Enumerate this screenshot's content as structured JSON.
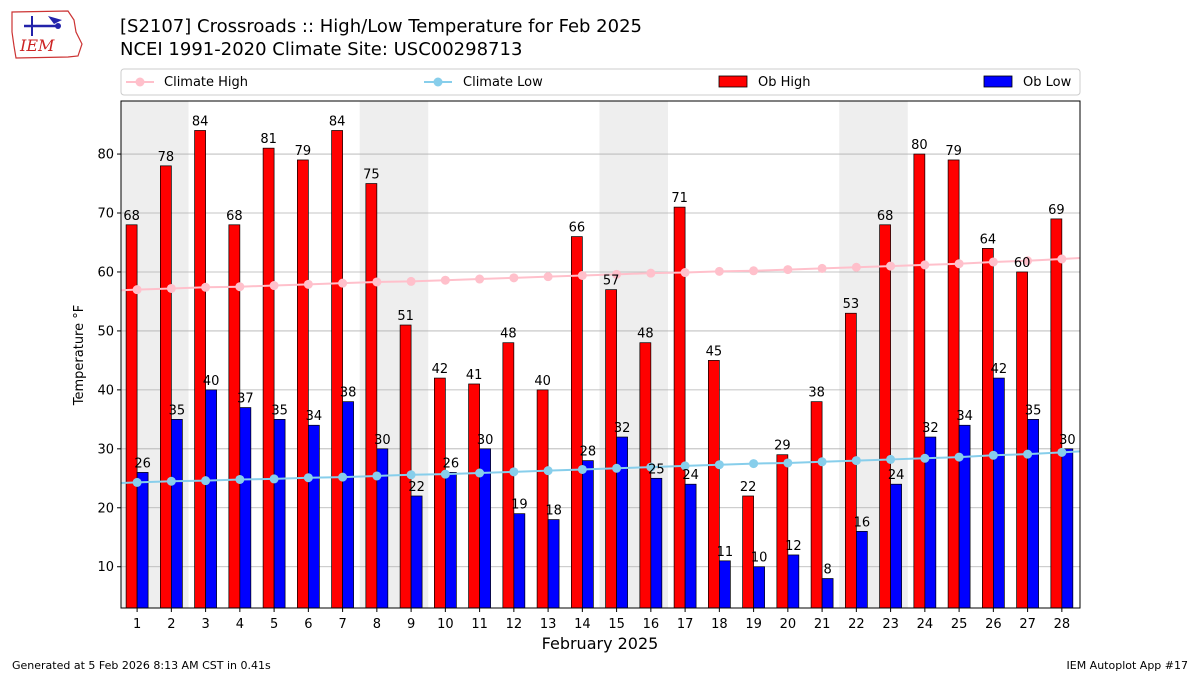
{
  "header": {
    "title_line1": "[S2107] Crossroads :: High/Low Temperature for Feb 2025",
    "title_line2": "NCEI 1991-2020 Climate Site: USC00298713"
  },
  "logo": {
    "text": "IEM"
  },
  "footer": {
    "generated": "Generated at 5 Feb 2026 8:13 AM CST in 0.41s",
    "app": "IEM Autoplot App #17"
  },
  "colors": {
    "ob_high": "#ff0000",
    "ob_low": "#0000ff",
    "climate_high": "#ffc0cb",
    "climate_low": "#87ceeb",
    "weekend_shade": "#eeeeee",
    "grid": "#b0b0b0"
  },
  "chart_data": {
    "type": "bar",
    "xlabel": "February 2025",
    "ylabel": "Temperature °F",
    "ylim": [
      3,
      89
    ],
    "yticks": [
      10,
      20,
      30,
      40,
      50,
      60,
      70,
      80
    ],
    "grid": "horizontal",
    "legend_position": "top",
    "categories": [
      1,
      2,
      3,
      4,
      5,
      6,
      7,
      8,
      9,
      10,
      11,
      12,
      13,
      14,
      15,
      16,
      17,
      18,
      19,
      20,
      21,
      22,
      23,
      24,
      25,
      26,
      27,
      28
    ],
    "shaded_days": [
      [
        1,
        2
      ],
      [
        8,
        9
      ],
      [
        15,
        16
      ],
      [
        22,
        23
      ]
    ],
    "series": [
      {
        "name": "Climate High",
        "type": "line",
        "values": [
          57.0,
          57.2,
          57.4,
          57.5,
          57.7,
          57.9,
          58.1,
          58.3,
          58.4,
          58.6,
          58.8,
          59.0,
          59.2,
          59.4,
          59.6,
          59.8,
          59.9,
          60.1,
          60.2,
          60.4,
          60.6,
          60.8,
          61.0,
          61.2,
          61.4,
          61.7,
          61.9,
          62.2
        ]
      },
      {
        "name": "Climate Low",
        "type": "line",
        "values": [
          24.3,
          24.5,
          24.6,
          24.8,
          24.9,
          25.1,
          25.2,
          25.4,
          25.6,
          25.7,
          25.9,
          26.1,
          26.3,
          26.5,
          26.7,
          26.9,
          27.1,
          27.3,
          27.5,
          27.6,
          27.8,
          28.0,
          28.2,
          28.4,
          28.6,
          28.9,
          29.1,
          29.4
        ]
      },
      {
        "name": "Ob High",
        "type": "bar",
        "values": [
          68,
          78,
          84,
          68,
          81,
          79,
          84,
          75,
          51,
          42,
          41,
          48,
          40,
          66,
          57,
          48,
          71,
          45,
          22,
          29,
          38,
          53,
          68,
          80,
          79,
          64,
          60,
          69
        ]
      },
      {
        "name": "Ob Low",
        "type": "bar",
        "values": [
          26,
          35,
          40,
          37,
          35,
          34,
          38,
          30,
          22,
          26,
          30,
          19,
          18,
          28,
          32,
          25,
          24,
          11,
          10,
          12,
          8,
          16,
          24,
          32,
          34,
          42,
          35,
          30
        ]
      }
    ]
  }
}
